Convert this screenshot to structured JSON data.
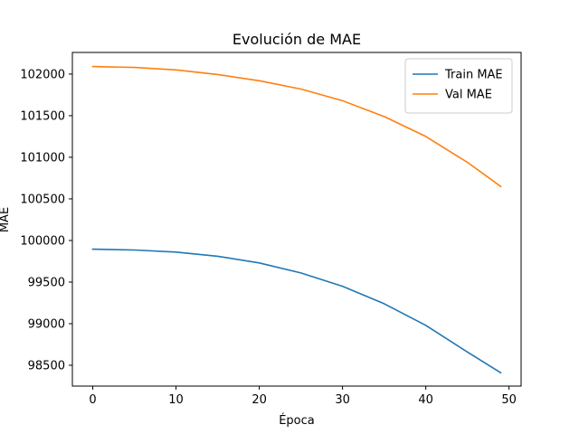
{
  "chart_data": {
    "type": "line",
    "title": "Evolución de MAE",
    "xlabel": "Época",
    "ylabel": "MAE",
    "xlim": [
      -2.45,
      51.45
    ],
    "ylim": [
      98250,
      102260
    ],
    "xticks": [
      0,
      10,
      20,
      30,
      40,
      50
    ],
    "yticks": [
      98500,
      99000,
      99500,
      100000,
      100500,
      101000,
      101500,
      102000
    ],
    "grid": false,
    "legend": "top-right",
    "series": [
      {
        "name": "Train MAE",
        "color": "#1f77b4",
        "x": [
          0,
          5,
          10,
          15,
          20,
          25,
          30,
          35,
          40,
          45,
          49
        ],
        "y": [
          99895,
          99885,
          99860,
          99810,
          99730,
          99610,
          99450,
          99240,
          98980,
          98660,
          98410
        ]
      },
      {
        "name": "Val MAE",
        "color": "#ff7f0e",
        "x": [
          0,
          5,
          10,
          15,
          20,
          25,
          30,
          35,
          40,
          45,
          49
        ],
        "y": [
          102090,
          102080,
          102050,
          101995,
          101920,
          101820,
          101680,
          101490,
          101250,
          100940,
          100650
        ]
      }
    ]
  }
}
